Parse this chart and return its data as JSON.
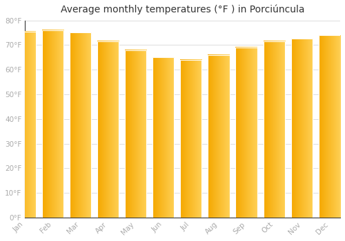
{
  "months": [
    "Jan",
    "Feb",
    "Mar",
    "Apr",
    "May",
    "Jun",
    "Jul",
    "Aug",
    "Sep",
    "Oct",
    "Nov",
    "Dec"
  ],
  "values": [
    75.5,
    76.0,
    75.0,
    71.5,
    68.0,
    65.0,
    64.0,
    66.0,
    69.0,
    71.5,
    72.5,
    74.0
  ],
  "bar_color_left": "#F5A800",
  "bar_color_right": "#FFD055",
  "title": "Average monthly temperatures (°F ) in Porciúncula",
  "ylim": [
    0,
    80
  ],
  "ytick_step": 10,
  "background_color": "#FFFFFF",
  "plot_bg_color": "#FFFFFF",
  "grid_color": "#DDDDDD",
  "title_fontsize": 10,
  "tick_fontsize": 7.5,
  "tick_color": "#AAAAAA",
  "bar_width": 0.78
}
